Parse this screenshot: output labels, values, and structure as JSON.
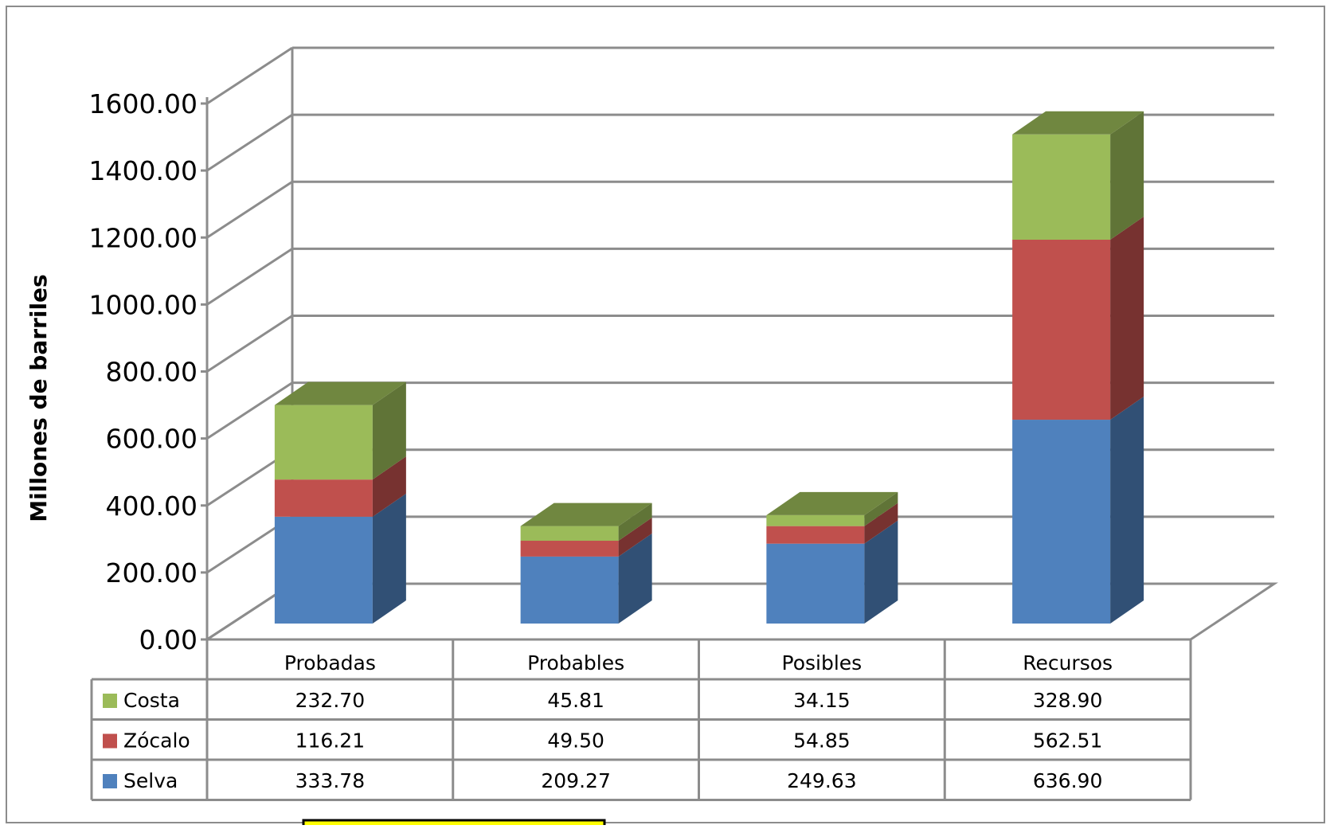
{
  "chart_data": {
    "type": "bar",
    "stacked": true,
    "three_d": true,
    "title": "",
    "xlabel": "",
    "ylabel": "Millones de barriles",
    "ylim": [
      0,
      1600
    ],
    "yticks": [
      "0.00",
      "200.00",
      "400.00",
      "600.00",
      "800.00",
      "1000.00",
      "1200.00",
      "1400.00",
      "1600.00"
    ],
    "grid": true,
    "legend": "data-table-left",
    "categories": [
      "Probadas",
      "Probables",
      "Posibles",
      "Recursos"
    ],
    "series": [
      {
        "name": "Costa",
        "color": "#9BBB59",
        "values": [
          232.7,
          45.81,
          34.15,
          328.9
        ],
        "labels": [
          "232.70",
          "45.81",
          "34.15",
          "328.90"
        ]
      },
      {
        "name": "Zócalo",
        "color": "#C0504D",
        "values": [
          116.21,
          49.5,
          54.85,
          562.51
        ],
        "labels": [
          "116.21",
          "49.50",
          "54.85",
          "562.51"
        ]
      },
      {
        "name": "Selva",
        "color": "#4F81BD",
        "values": [
          333.78,
          209.27,
          249.63,
          636.9
        ],
        "labels": [
          "333.78",
          "209.27",
          "249.63",
          "636.90"
        ]
      }
    ],
    "highlight_box_color": "#FFFF00"
  }
}
